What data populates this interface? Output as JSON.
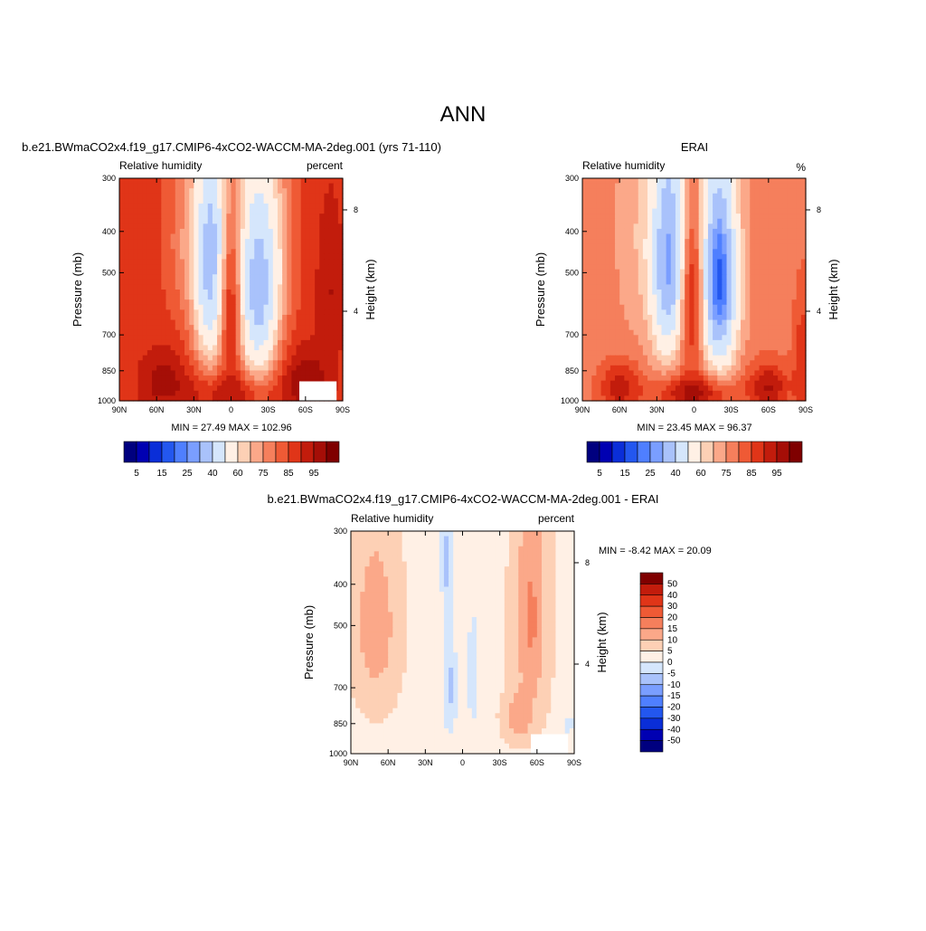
{
  "page": {
    "title": "ANN"
  },
  "colors": {
    "rh_levels": [
      "#00007f",
      "#0000b2",
      "#0a2ed8",
      "#2357ef",
      "#4f7fff",
      "#7a9eff",
      "#a9c2fb",
      "#d5e6fc",
      "#fff0e5",
      "#fdd0b5",
      "#fba889",
      "#f57f5c",
      "#ef5a35",
      "#e03518",
      "#c21c0c",
      "#a50e07",
      "#7f0000"
    ],
    "diff_levels": [
      "#00007f",
      "#0000b2",
      "#0a2ed8",
      "#2357ef",
      "#4f7fff",
      "#7a9eff",
      "#a9c2fb",
      "#d5e6fc",
      "#fff0e5",
      "#fdd0b5",
      "#fba889",
      "#f57f5c",
      "#ef5a35",
      "#e03518",
      "#c21c0c",
      "#7f0000"
    ]
  },
  "chart_data": [
    {
      "type": "heatmap",
      "id": "model",
      "title": "b.e21.BWmaCO2x4.f19_g17.CMIP6-4xCO2-WACCM-MA-2deg.001 (yrs 71-110)",
      "left_label": "Relative humidity",
      "right_label": "percent",
      "ylabel": "Pressure (mb)",
      "y2label": "Height (km)",
      "x_ticks": [
        "90N",
        "60N",
        "30N",
        "0",
        "30S",
        "60S",
        "90S"
      ],
      "x_range": [
        90,
        -90
      ],
      "y_ticks": [
        "300",
        "400",
        "500",
        "700",
        "850",
        "1000"
      ],
      "y_range": [
        300,
        1000
      ],
      "y_scale": "log",
      "y2_ticks": [
        "8",
        "4"
      ],
      "min_max": "MIN =  27.49  MAX = 102.96",
      "colorbar_labels": [
        "5",
        "15",
        "25",
        "40",
        "60",
        "75",
        "85",
        "95"
      ],
      "colorbar_orientation": "horizontal",
      "missing_region": "60S-90S below ~900 mb"
    },
    {
      "type": "heatmap",
      "id": "obs",
      "title": "ERAI",
      "left_label": "Relative humidity",
      "right_label": "%",
      "ylabel": "Pressure (mb)",
      "y2label": "Height (km)",
      "x_ticks": [
        "90N",
        "60N",
        "30N",
        "0",
        "30S",
        "60S",
        "90S"
      ],
      "x_range": [
        90,
        -90
      ],
      "y_ticks": [
        "300",
        "400",
        "500",
        "700",
        "850",
        "1000"
      ],
      "y_range": [
        300,
        1000
      ],
      "y_scale": "log",
      "y2_ticks": [
        "8",
        "4"
      ],
      "min_max": "MIN =  23.45  MAX =  96.37",
      "colorbar_labels": [
        "5",
        "15",
        "25",
        "40",
        "60",
        "75",
        "85",
        "95"
      ],
      "colorbar_orientation": "horizontal"
    },
    {
      "type": "heatmap",
      "id": "diff",
      "title": "b.e21.BWmaCO2x4.f19_g17.CMIP6-4xCO2-WACCM-MA-2deg.001 - ERAI",
      "left_label": "Relative humidity",
      "right_label": "percent",
      "ylabel": "Pressure (mb)",
      "y2label": "Height (km)",
      "x_ticks": [
        "90N",
        "60N",
        "30N",
        "0",
        "30S",
        "60S",
        "90S"
      ],
      "x_range": [
        90,
        -90
      ],
      "y_ticks": [
        "300",
        "400",
        "500",
        "700",
        "850",
        "1000"
      ],
      "y_range": [
        300,
        1000
      ],
      "y_scale": "log",
      "y2_ticks": [
        "8",
        "4"
      ],
      "min_max": "MIN =  -8.42  MAX =  20.09",
      "colorbar_labels": [
        "50",
        "40",
        "30",
        "20",
        "15",
        "10",
        "5",
        "0",
        "-5",
        "-10",
        "-15",
        "-20",
        "-30",
        "-40",
        "-50"
      ],
      "colorbar_orientation": "vertical",
      "missing_region": "60S-90S below ~900 mb"
    }
  ]
}
